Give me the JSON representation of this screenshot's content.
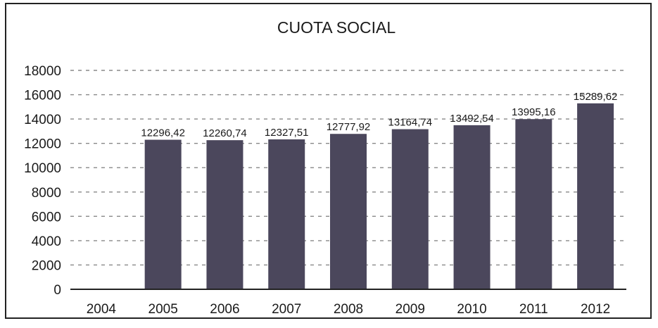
{
  "chart_data": {
    "type": "bar",
    "title": "CUOTA SOCIAL",
    "xlabel": "",
    "ylabel": "",
    "categories": [
      "2004",
      "2005",
      "2006",
      "2007",
      "2008",
      "2009",
      "2010",
      "2011",
      "2012"
    ],
    "values": [
      null,
      12296.42,
      12260.74,
      12327.51,
      12777.92,
      13164.74,
      13492.54,
      13995.16,
      15289.62
    ],
    "data_labels": [
      "",
      "12296,42",
      "12260,74",
      "12327,51",
      "12777,92",
      "13164,74",
      "13492,54",
      "13995,16",
      "15289,62"
    ],
    "ylim": [
      0,
      18000
    ],
    "yticks": [
      0,
      2000,
      4000,
      6000,
      8000,
      10000,
      12000,
      14000,
      16000,
      18000
    ],
    "grid": true,
    "legend": "none",
    "colors": {
      "bar": "#4b475c",
      "grid": "#888888",
      "axis": "#222222"
    }
  }
}
